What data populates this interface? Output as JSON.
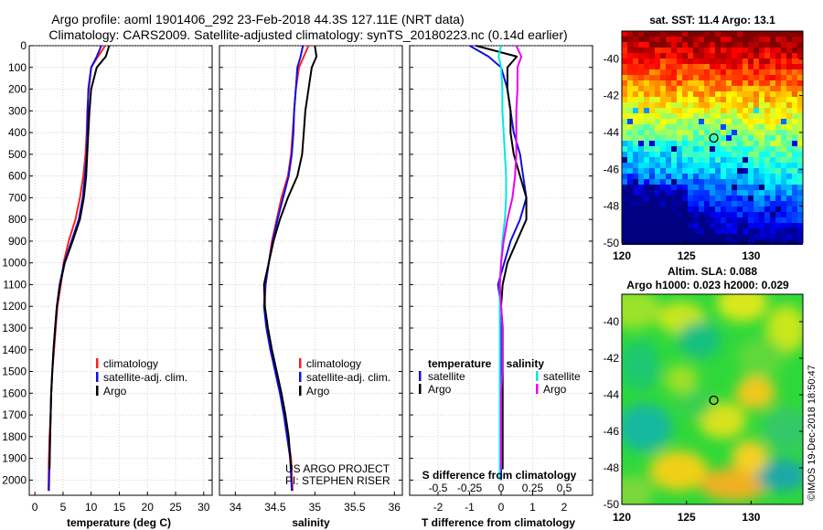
{
  "header": {
    "title_line1": "Argo profile: aoml 1901406_292 23-Feb-2018 44.3S 127.11E (NRT data)",
    "title_line2": "Climatology: CARS2009. Satellite-adjusted climatology: synTS_20180223.nc (0.14d earlier)"
  },
  "colors": {
    "climatology": "#ff2020",
    "satellite": "#1010e0",
    "argo": "#000000",
    "t_satellite": "#1010e0",
    "s_satellite": "#00e8e8",
    "s_argo": "#ee00ee",
    "grid": "#bbbbbb"
  },
  "chart_data": [
    {
      "id": "temperature",
      "type": "line",
      "xlabel": "temperature (deg C)",
      "xlim": [
        -1,
        31.5
      ],
      "xticks": [
        "0",
        "5",
        "10",
        "15",
        "20",
        "25",
        "30"
      ],
      "xtick_values": [
        0,
        5,
        10,
        15,
        20,
        25,
        30
      ],
      "ylim": [
        2070,
        0
      ],
      "yticks": [
        "0",
        "100",
        "200",
        "300",
        "400",
        "500",
        "600",
        "700",
        "800",
        "900",
        "1000",
        "1100",
        "1200",
        "1300",
        "1400",
        "1500",
        "1600",
        "1700",
        "1800",
        "1900",
        "2000"
      ],
      "ytick_values": [
        0,
        100,
        200,
        300,
        400,
        500,
        600,
        700,
        800,
        900,
        1000,
        1100,
        1200,
        1300,
        1400,
        1500,
        1600,
        1700,
        1800,
        1900,
        2000
      ],
      "legend": [
        "climatology",
        "satellite-adj. clim.",
        "Argo"
      ],
      "legend_position": "lower-right",
      "series": [
        {
          "name": "climatology",
          "color_key": "climatology",
          "x": [
            12.5,
            11.2,
            10.0,
            9.6,
            9.3,
            9.2,
            9.0,
            8.6,
            8.0,
            7.2,
            6.0,
            5.1,
            4.6,
            4.0,
            3.7,
            3.4,
            3.1,
            2.9,
            2.8,
            2.6,
            2.5,
            2.4
          ],
          "y": [
            0,
            50,
            100,
            200,
            300,
            400,
            500,
            600,
            700,
            800,
            900,
            1000,
            1100,
            1200,
            1300,
            1400,
            1500,
            1600,
            1700,
            1800,
            1900,
            2050
          ]
        },
        {
          "name": "satellite-adj. clim.",
          "color_key": "satellite",
          "x": [
            11.8,
            11.0,
            10.0,
            9.5,
            9.4,
            9.3,
            9.2,
            8.9,
            8.5,
            7.8,
            6.5,
            5.2,
            4.4,
            3.9,
            3.6,
            3.3,
            3.1,
            2.9,
            2.8,
            2.7,
            2.6,
            2.5
          ],
          "y": [
            0,
            50,
            100,
            200,
            300,
            400,
            500,
            600,
            700,
            800,
            900,
            1000,
            1100,
            1200,
            1300,
            1400,
            1500,
            1600,
            1700,
            1800,
            1900,
            2050
          ]
        },
        {
          "name": "Argo",
          "color_key": "argo",
          "x": [
            13.2,
            12.6,
            11.0,
            10.0,
            9.7,
            9.5,
            9.3,
            9.1,
            8.7,
            8.0,
            6.7,
            5.3,
            4.5,
            3.9,
            3.6,
            3.3,
            3.1,
            2.9,
            2.8,
            2.7,
            2.6
          ],
          "y": [
            0,
            50,
            100,
            200,
            300,
            400,
            500,
            600,
            700,
            800,
            900,
            1000,
            1100,
            1200,
            1300,
            1400,
            1500,
            1600,
            1700,
            1800,
            1950
          ]
        }
      ]
    },
    {
      "id": "salinity",
      "type": "line",
      "xlabel": "salinity",
      "xlim": [
        33.8,
        36.1
      ],
      "xticks": [
        "34",
        "34.5",
        "35",
        "35.5",
        "36"
      ],
      "xtick_values": [
        34,
        34.5,
        35,
        35.5,
        36
      ],
      "ylim": [
        2070,
        0
      ],
      "legend": [
        "climatology",
        "satellite-adj. clim.",
        "Argo"
      ],
      "legend_position": "lower-right",
      "annotations": [
        "US ARGO PROJECT",
        "PI: STEPHEN RISER"
      ],
      "series": [
        {
          "name": "climatology",
          "color_key": "climatology",
          "x": [
            34.92,
            34.86,
            34.8,
            34.76,
            34.74,
            34.72,
            34.7,
            34.66,
            34.58,
            34.52,
            34.46,
            34.42,
            34.38,
            34.37,
            34.4,
            34.45,
            34.51,
            34.57,
            34.62,
            34.66,
            34.7,
            34.72
          ],
          "y": [
            0,
            50,
            100,
            200,
            300,
            400,
            500,
            600,
            700,
            800,
            900,
            1000,
            1100,
            1200,
            1300,
            1400,
            1500,
            1600,
            1700,
            1800,
            1900,
            2050
          ]
        },
        {
          "name": "satellite-adj. clim.",
          "color_key": "satellite",
          "x": [
            34.85,
            34.82,
            34.78,
            34.76,
            34.74,
            34.73,
            34.71,
            34.67,
            34.6,
            34.53,
            34.47,
            34.42,
            34.38,
            34.36,
            34.39,
            34.44,
            34.5,
            34.56,
            34.61,
            34.65,
            34.69,
            34.71
          ],
          "y": [
            0,
            50,
            100,
            200,
            300,
            400,
            500,
            600,
            700,
            800,
            900,
            1000,
            1100,
            1200,
            1300,
            1400,
            1500,
            1600,
            1700,
            1800,
            1900,
            2050
          ]
        },
        {
          "name": "Argo",
          "color_key": "argo",
          "x": [
            35.0,
            35.02,
            34.96,
            34.92,
            34.88,
            34.86,
            34.84,
            34.78,
            34.66,
            34.56,
            34.48,
            34.42,
            34.36,
            34.37,
            34.41,
            34.46,
            34.52,
            34.58,
            34.63,
            34.67,
            34.7
          ],
          "y": [
            0,
            50,
            100,
            200,
            300,
            400,
            500,
            600,
            700,
            800,
            900,
            1000,
            1100,
            1200,
            1300,
            1400,
            1500,
            1600,
            1700,
            1800,
            1950
          ]
        }
      ]
    },
    {
      "id": "difference",
      "type": "line",
      "xlabel": "T difference from climatology",
      "xlabel2": "S difference from climatology",
      "xlim": [
        -2.9,
        2.9
      ],
      "xticks": [
        "-2",
        "-1",
        "0",
        "1",
        "2"
      ],
      "xtick_values": [
        -2,
        -1,
        0,
        1,
        2
      ],
      "xticks2": [
        "-0.5",
        "-0.25",
        "0",
        "0.25",
        "0.5"
      ],
      "xtick2_values": [
        -0.5,
        -0.25,
        0,
        0.25,
        0.5
      ],
      "ylim": [
        2070,
        0
      ],
      "legend_left_title": "temperature",
      "legend_right_title": "salinity",
      "legend_left": [
        "satellite",
        "Argo"
      ],
      "legend_right": [
        "satellite",
        "Argo"
      ],
      "series": [
        {
          "name": "satellite",
          "quantity": "temperature",
          "color_key": "t_satellite",
          "x": [
            -1.0,
            -0.4,
            0.0,
            0.2,
            0.3,
            0.4,
            0.6,
            0.7,
            0.8,
            0.6,
            0.3,
            0.1,
            -0.1,
            0.0,
            0.0,
            0.0,
            0.0,
            0.0,
            0.0,
            0.0,
            0.0
          ],
          "y": [
            0,
            50,
            100,
            200,
            300,
            400,
            500,
            600,
            700,
            800,
            900,
            1000,
            1100,
            1200,
            1300,
            1400,
            1500,
            1600,
            1700,
            1800,
            2000
          ]
        },
        {
          "name": "Argo",
          "quantity": "temperature",
          "color_key": "argo",
          "x": [
            -0.8,
            0.5,
            0.2,
            0.2,
            0.3,
            0.3,
            0.4,
            0.6,
            0.8,
            0.8,
            0.5,
            0.2,
            0.05,
            0.0,
            0.05,
            0.05,
            0.05,
            0.05,
            0.05,
            0.05
          ],
          "y": [
            0,
            50,
            100,
            200,
            300,
            400,
            500,
            600,
            700,
            800,
            900,
            1000,
            1100,
            1200,
            1300,
            1400,
            1500,
            1600,
            1700,
            1950
          ]
        },
        {
          "name": "satellite",
          "quantity": "salinity",
          "color_key": "s_satellite",
          "x": [
            0.0,
            -0.02,
            0.0,
            0.01,
            0.01,
            0.02,
            0.03,
            0.04,
            0.04,
            0.03,
            0.01,
            0.0,
            -0.01,
            -0.01,
            -0.01,
            -0.01,
            -0.01,
            -0.01,
            -0.01,
            -0.01,
            -0.01
          ],
          "y": [
            0,
            50,
            100,
            200,
            300,
            400,
            500,
            600,
            700,
            800,
            900,
            1000,
            1100,
            1200,
            1300,
            1400,
            1500,
            1600,
            1700,
            1800,
            2000
          ]
        },
        {
          "name": "Argo",
          "quantity": "salinity",
          "color_key": "s_argo",
          "x": [
            0.12,
            0.16,
            0.13,
            0.13,
            0.12,
            0.12,
            0.12,
            0.11,
            0.09,
            0.05,
            0.02,
            0.0,
            -0.01,
            0.0,
            0.01,
            0.01,
            0.01,
            0.0,
            0.0
          ],
          "y": [
            0,
            50,
            100,
            200,
            300,
            400,
            500,
            600,
            700,
            800,
            900,
            1000,
            1100,
            1200,
            1300,
            1400,
            1500,
            1600,
            1950
          ]
        }
      ]
    },
    {
      "id": "sst_map",
      "type": "heatmap",
      "title": "sat. SST: 11.4 Argo: 13.1",
      "xlim": [
        120,
        134
      ],
      "ylim": [
        -50,
        -38.5
      ],
      "xticks": [
        "120",
        "125",
        "130"
      ],
      "xtick_values": [
        120,
        125,
        130
      ],
      "yticks": [
        "-40",
        "-42",
        "-44",
        "-46",
        "-48",
        "-50"
      ],
      "ytick_values": [
        -40,
        -42,
        -44,
        -46,
        -48,
        -50
      ],
      "marker": {
        "lon": 127.11,
        "lat": -44.3
      }
    },
    {
      "id": "sla_map",
      "type": "heatmap",
      "title": "Altim. SLA: 0.088",
      "subtitle": "Argo h1000: 0.023 h2000: 0.029",
      "xlim": [
        120,
        134
      ],
      "ylim": [
        -50,
        -38.5
      ],
      "xticks": [
        "120",
        "125",
        "130"
      ],
      "xtick_values": [
        120,
        125,
        130
      ],
      "yticks": [
        "-40",
        "-42",
        "-44",
        "-46",
        "-48",
        "-50"
      ],
      "ytick_values": [
        -40,
        -42,
        -44,
        -46,
        -48,
        -50
      ],
      "marker": {
        "lon": 127.11,
        "lat": -44.3
      }
    }
  ],
  "footer": {
    "stamp": "©IMOS 19-Dec-2018 18:50:47"
  }
}
